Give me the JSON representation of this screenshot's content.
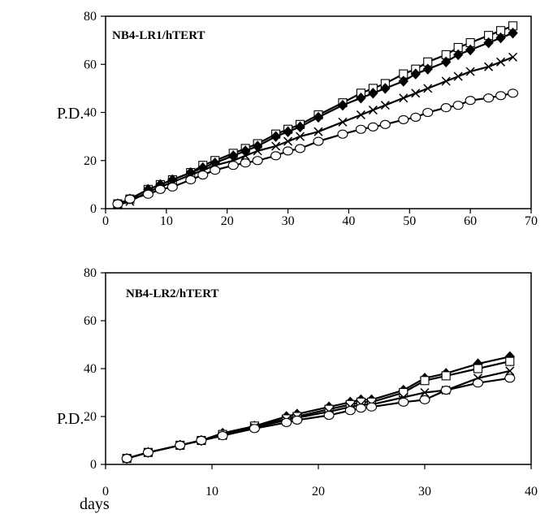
{
  "chart_data": [
    {
      "type": "line",
      "title": "NB4-LR1/hTERT",
      "xlabel": "",
      "ylabel": "P.D.",
      "xlim": [
        0,
        70
      ],
      "ylim": [
        0,
        80
      ],
      "xticks": [
        "0",
        "10",
        "20",
        "30",
        "40",
        "50",
        "60",
        "70"
      ],
      "yticks": [
        "0",
        "20",
        "40",
        "60",
        "80"
      ],
      "grid": false,
      "series": [
        {
          "marker": "square-open",
          "x": [
            2,
            4,
            7,
            9,
            11,
            14,
            16,
            18,
            21,
            23,
            25,
            28,
            30,
            32,
            35,
            39,
            42,
            44,
            46,
            49,
            51,
            53,
            56,
            58,
            60,
            63,
            65,
            67
          ],
          "y": [
            2,
            4,
            8,
            10,
            12,
            15,
            18,
            20,
            23,
            25,
            27,
            31,
            33,
            35,
            39,
            44,
            48,
            50,
            52,
            56,
            58,
            61,
            64,
            67,
            69,
            72,
            74,
            76
          ]
        },
        {
          "marker": "diamond-filled",
          "x": [
            2,
            4,
            7,
            9,
            11,
            14,
            16,
            18,
            21,
            23,
            25,
            28,
            30,
            32,
            35,
            39,
            42,
            44,
            46,
            49,
            51,
            53,
            56,
            58,
            60,
            63,
            65,
            67
          ],
          "y": [
            2,
            4,
            8,
            10,
            12,
            15,
            17,
            19,
            22,
            24,
            26,
            30,
            32,
            34,
            38,
            43,
            46,
            48,
            50,
            53,
            56,
            58,
            61,
            64,
            66,
            69,
            71,
            73
          ]
        },
        {
          "marker": "x",
          "x": [
            2,
            4,
            7,
            9,
            11,
            14,
            16,
            18,
            21,
            23,
            25,
            28,
            30,
            32,
            35,
            39,
            42,
            44,
            46,
            49,
            51,
            53,
            56,
            58,
            60,
            63,
            65,
            67
          ],
          "y": [
            1.5,
            3,
            7,
            9,
            11,
            14,
            16,
            18,
            20,
            22,
            24,
            26,
            28,
            30,
            32,
            36,
            39,
            41,
            43,
            46,
            48,
            50,
            53,
            55,
            57,
            59,
            61,
            63
          ]
        },
        {
          "marker": "circle-open",
          "x": [
            2,
            4,
            7,
            9,
            11,
            14,
            16,
            18,
            21,
            23,
            25,
            28,
            30,
            32,
            35,
            39,
            42,
            44,
            46,
            49,
            51,
            53,
            56,
            58,
            60,
            63,
            65,
            67
          ],
          "y": [
            2,
            4,
            6,
            8,
            9,
            12,
            14,
            16,
            18,
            19,
            20,
            22,
            24,
            25,
            28,
            31,
            33,
            34,
            35,
            37,
            38,
            40,
            42,
            43,
            45,
            46,
            47,
            48
          ]
        }
      ]
    },
    {
      "type": "line",
      "title": "NB4-LR2/hTERT",
      "xlabel": "days",
      "ylabel": "P.D.",
      "xlim": [
        0,
        40
      ],
      "ylim": [
        0,
        80
      ],
      "xticks": [
        "0",
        "10",
        "20",
        "30",
        "40"
      ],
      "yticks": [
        "0",
        "20",
        "40",
        "60",
        "80"
      ],
      "grid": false,
      "series": [
        {
          "marker": "diamond-filled",
          "x": [
            2,
            4,
            7,
            9,
            11,
            14,
            17,
            18,
            21,
            23,
            24,
            25,
            28,
            30,
            32,
            35,
            38
          ],
          "y": [
            2.5,
            5,
            8,
            10,
            13,
            16,
            20,
            21,
            24,
            26,
            27,
            27,
            31,
            36,
            38,
            42,
            45
          ]
        },
        {
          "marker": "square-open",
          "x": [
            2,
            4,
            7,
            9,
            11,
            14,
            17,
            18,
            21,
            23,
            24,
            25,
            28,
            30,
            32,
            35,
            38
          ],
          "y": [
            2.5,
            5,
            8,
            10,
            12.5,
            16,
            19,
            20,
            23,
            25,
            26,
            26,
            30,
            35,
            37,
            40,
            43
          ]
        },
        {
          "marker": "x",
          "x": [
            2,
            4,
            7,
            9,
            11,
            14,
            17,
            18,
            21,
            23,
            24,
            25,
            28,
            30,
            32,
            35,
            38
          ],
          "y": [
            2.5,
            5,
            8,
            10,
            12,
            15.5,
            18.5,
            19.5,
            22,
            24,
            25,
            25,
            28,
            30,
            31,
            36,
            39
          ]
        },
        {
          "marker": "circle-open",
          "x": [
            2,
            4,
            7,
            9,
            11,
            14,
            17,
            18,
            21,
            23,
            24,
            25,
            28,
            30,
            32,
            35,
            38
          ],
          "y": [
            2.5,
            5,
            8,
            10,
            12,
            15,
            17.5,
            18.5,
            20.5,
            22.5,
            23.5,
            24,
            26,
            27,
            31,
            34,
            36
          ]
        }
      ]
    }
  ]
}
